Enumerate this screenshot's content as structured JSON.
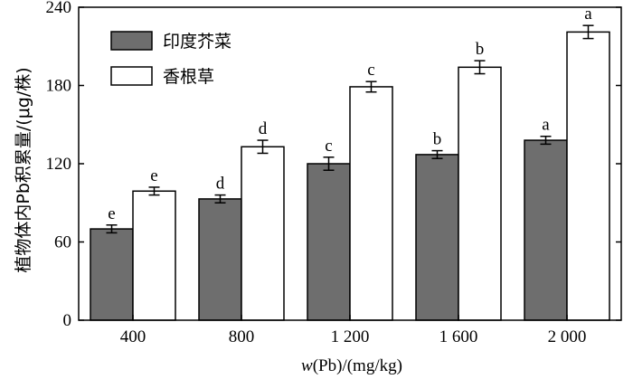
{
  "chart_data": {
    "type": "bar",
    "categories": [
      "400",
      "800",
      "1 200",
      "1 600",
      "2 000"
    ],
    "series": [
      {
        "name": "印度芥菜",
        "values": [
          70,
          93,
          120,
          127,
          138
        ],
        "errors": [
          3,
          3,
          5,
          3,
          3
        ],
        "labels": [
          "e",
          "d",
          "c",
          "b",
          "a"
        ],
        "color": "#6e6e6e"
      },
      {
        "name": "香根草",
        "values": [
          99,
          133,
          179,
          194,
          221
        ],
        "errors": [
          3,
          5,
          4,
          5,
          5
        ],
        "labels": [
          "e",
          "d",
          "c",
          "b",
          "a"
        ],
        "color": "#ffffff"
      }
    ],
    "ylabel": "植物体内Pb积累量/(μg/株)",
    "xlabel_parts": [
      "w",
      "(Pb)/(mg/kg)"
    ],
    "ylim": [
      0,
      240
    ],
    "yticks": [
      "0",
      "60",
      "120",
      "180",
      "240"
    ],
    "grid": false,
    "legend_position": "top-left"
  }
}
